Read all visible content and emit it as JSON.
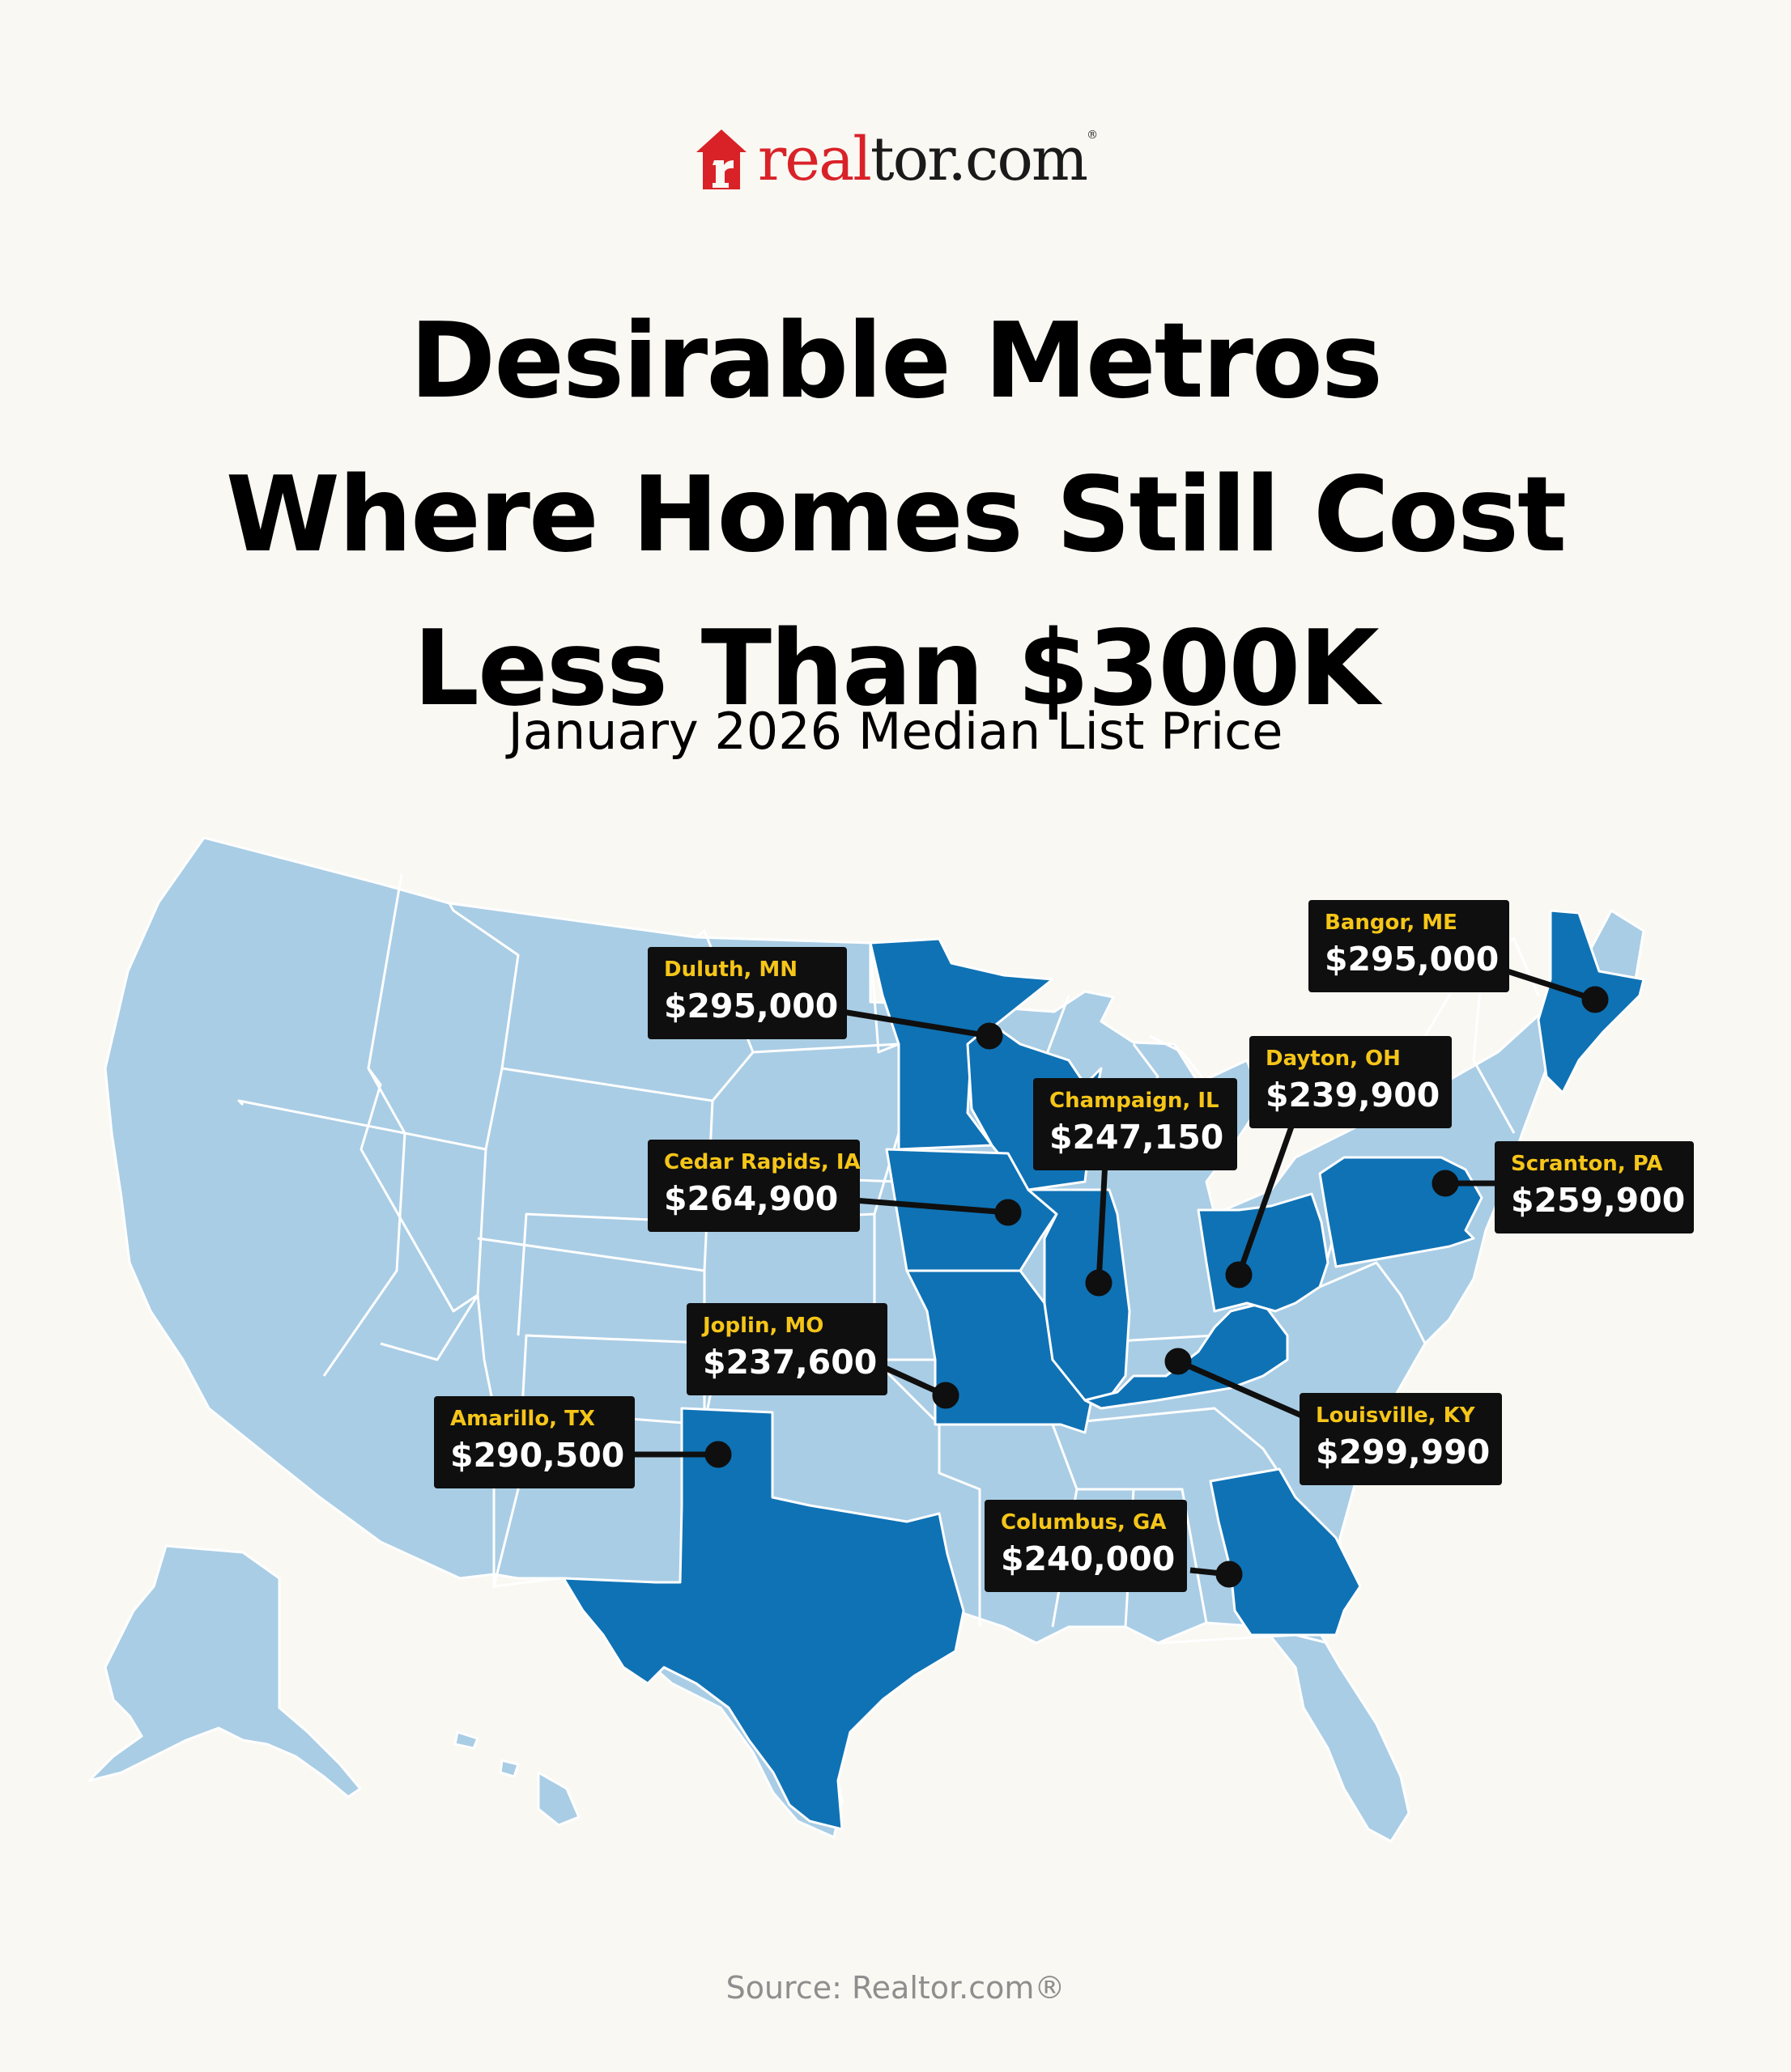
{
  "brand": {
    "logo_text_accent": "real",
    "logo_text_rest": "tor.com",
    "logo_color": "#d92228"
  },
  "header": {
    "title_lines": [
      "Desirable Metros",
      "Where Homes Still Cost",
      "Less Than $300K"
    ],
    "subtitle": "January 2026 Median List Price"
  },
  "map": {
    "base_color": "#a9cde5",
    "highlight_color": "#0f72b5",
    "highlighted_states": [
      "MN",
      "WI",
      "IA",
      "MO",
      "IL",
      "OH",
      "KY",
      "TX",
      "GA",
      "PA",
      "ME"
    ]
  },
  "metros": [
    {
      "city": "Duluth, MN",
      "price": "$295,000"
    },
    {
      "city": "Bangor, ME",
      "price": "$295,000"
    },
    {
      "city": "Dayton, OH",
      "price": "$239,900"
    },
    {
      "city": "Champaign, IL",
      "price": "$247,150"
    },
    {
      "city": "Cedar Rapids, IA",
      "price": "$264,900"
    },
    {
      "city": "Scranton, PA",
      "price": "$259,900"
    },
    {
      "city": "Joplin, MO",
      "price": "$237,600"
    },
    {
      "city": "Amarillo, TX",
      "price": "$290,500"
    },
    {
      "city": "Louisville, KY",
      "price": "$299,990"
    },
    {
      "city": "Columbus, GA",
      "price": "$240,000"
    }
  ],
  "source": "Source: Realtor.com®"
}
